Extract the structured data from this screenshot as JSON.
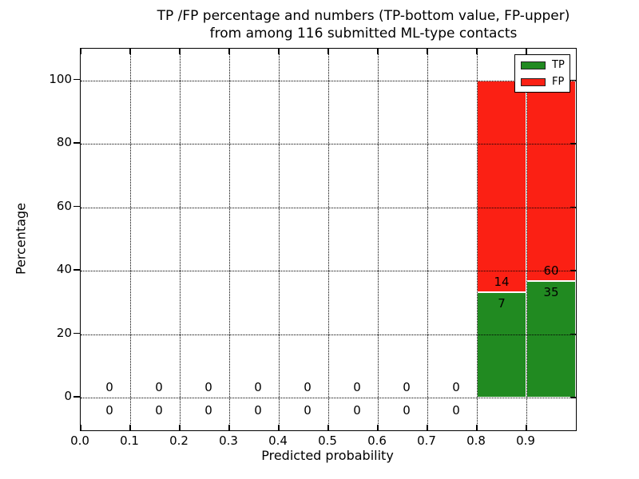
{
  "title": {
    "line1": "TP /FP percentage and numbers (TP-bottom value, FP-upper)",
    "line2": "from among 116 submitted ML-type contacts"
  },
  "axes": {
    "xlabel": "Predicted probability",
    "ylabel": "Percentage",
    "x_tick_labels": [
      "0.0",
      "0.1",
      "0.2",
      "0.3",
      "0.4",
      "0.5",
      "0.6",
      "0.7",
      "0.8",
      "0.9"
    ],
    "x_tick_values": [
      0.0,
      0.1,
      0.2,
      0.3,
      0.4,
      0.5,
      0.6,
      0.7,
      0.8,
      0.9
    ],
    "y_tick_labels": [
      "0",
      "20",
      "40",
      "60",
      "80",
      "100"
    ],
    "y_tick_values": [
      0,
      20,
      40,
      60,
      80,
      100
    ]
  },
  "legend": {
    "items": [
      {
        "label": "TP",
        "color": "#218a21"
      },
      {
        "label": "FP",
        "color": "#fb2014"
      }
    ]
  },
  "colors": {
    "tp": "#218a21",
    "fp": "#fb2014",
    "grid": "#000000",
    "background": "#ffffff",
    "bar_edge": "#ffffff"
  },
  "chart_data": {
    "type": "bar",
    "stacked": true,
    "grid": true,
    "grid_style": "dotted",
    "legend_position": "upper right",
    "title": "TP /FP percentage and numbers (TP-bottom value, FP-upper) from among 116 submitted ML-type contacts",
    "xlabel": "Predicted probability",
    "ylabel": "Percentage",
    "xlim": [
      0.0,
      1.0
    ],
    "ylim": [
      -11,
      110
    ],
    "total_contacts": 116,
    "bin_edges": [
      0.0,
      0.1,
      0.2,
      0.3,
      0.4,
      0.5,
      0.6,
      0.7,
      0.8,
      0.9,
      1.0
    ],
    "series": [
      {
        "name": "TP",
        "counts": [
          0,
          0,
          0,
          0,
          0,
          0,
          0,
          0,
          7,
          35
        ],
        "percent_heights": [
          0,
          0,
          0,
          0,
          0,
          0,
          0,
          0,
          33.3,
          36.8
        ]
      },
      {
        "name": "FP",
        "counts": [
          0,
          0,
          0,
          0,
          0,
          0,
          0,
          0,
          14,
          60
        ],
        "percent_heights": [
          0,
          0,
          0,
          0,
          0,
          0,
          0,
          0,
          66.7,
          63.2
        ]
      }
    ],
    "bar_total_percent_when_nonzero": 100,
    "note_labels": "each bin shows FP count above TP count; empty bins show 0 over 0"
  }
}
